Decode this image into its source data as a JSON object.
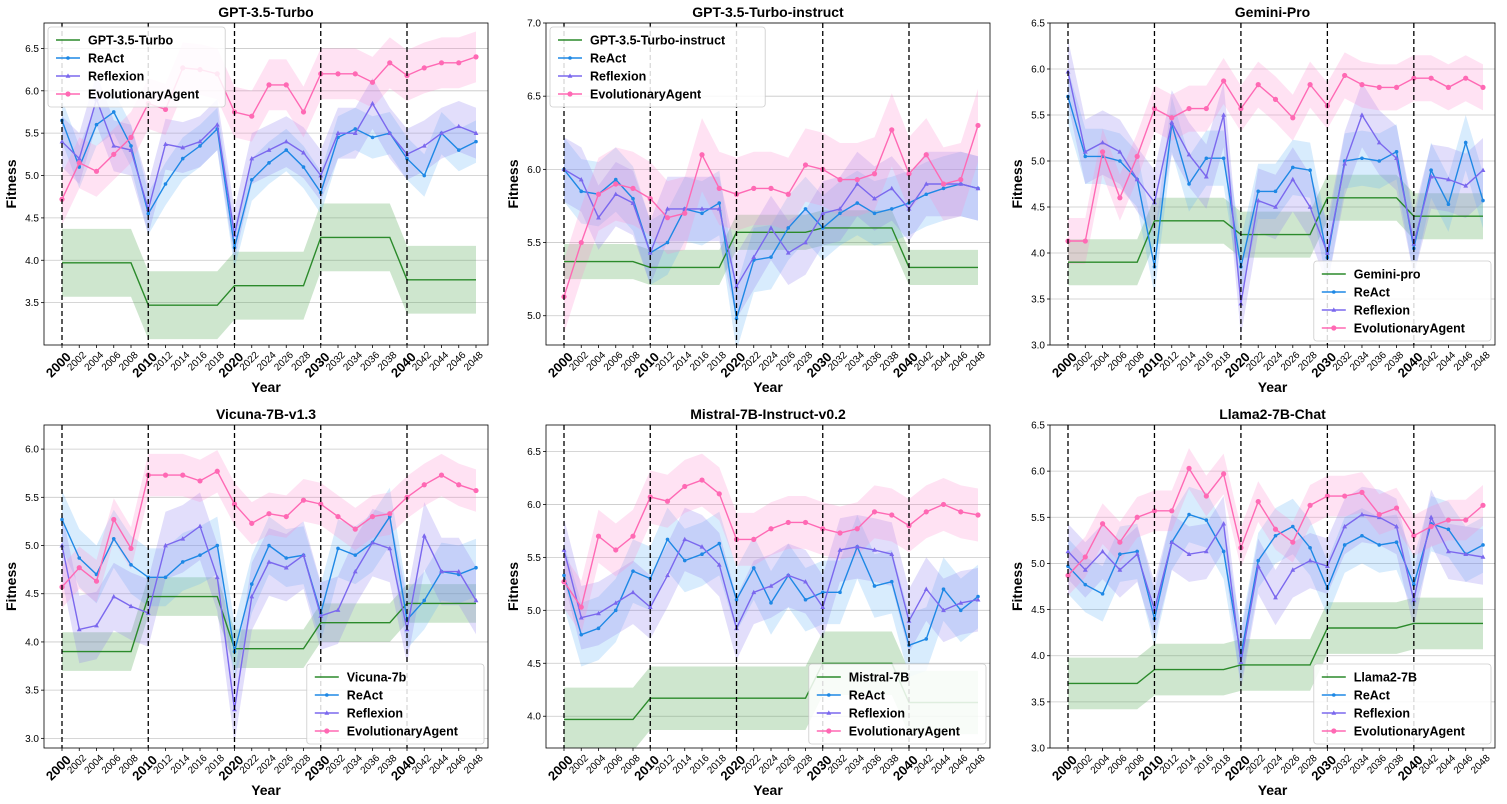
{
  "colors": {
    "baseline": "#2b8a2b",
    "baseline_band": "#3a9a3a",
    "react": "#1e88e5",
    "react_band": "#64b5f6",
    "reflexion": "#7b68ee",
    "reflexion_band": "#8a7cf0",
    "evo": "#ff69b4",
    "evo_band": "#ff8ccf",
    "grid": "#c8c8c8",
    "vline": "#000000"
  },
  "chart_data": [
    {
      "type": "line",
      "title": "GPT-3.5-Turbo",
      "xlabel": "Year",
      "ylabel": "Fitness",
      "ylim": [
        3.0,
        6.8
      ],
      "yticks": [
        "3.5",
        "4.0",
        "4.5",
        "5.0",
        "5.5",
        "6.0",
        "6.5"
      ],
      "x_tick_labels": [
        "2000",
        "2002",
        "2004",
        "2006",
        "2008",
        "2010",
        "2012",
        "2014",
        "2016",
        "2018",
        "2020",
        "2022",
        "2024",
        "2026",
        "2028",
        "2030",
        "2032",
        "2034",
        "2036",
        "2038",
        "2040",
        "2042",
        "2044",
        "2046",
        "2048"
      ],
      "legend_position": "upper-left",
      "series": [
        {
          "name": "GPT-3.5-Turbo",
          "key": "baseline",
          "values": [
            3.97,
            3.97,
            3.97,
            3.97,
            3.97,
            3.47,
            3.47,
            3.47,
            3.47,
            3.47,
            3.7,
            3.7,
            3.7,
            3.7,
            3.7,
            4.27,
            4.27,
            4.27,
            4.27,
            4.27,
            3.77,
            3.77,
            3.77,
            3.77,
            3.77
          ],
          "band": 0.4
        },
        {
          "name": "ReAct",
          "key": "react",
          "values": [
            5.65,
            5.1,
            5.6,
            5.75,
            5.35,
            4.55,
            4.9,
            5.2,
            5.35,
            5.55,
            4.15,
            4.95,
            5.15,
            5.3,
            5.1,
            4.8,
            5.45,
            5.55,
            5.45,
            5.5,
            5.2,
            5.0,
            5.5,
            5.3,
            5.4
          ],
          "band": 0.25
        },
        {
          "name": "Reflexion",
          "key": "reflexion",
          "values": [
            5.4,
            5.2,
            5.9,
            5.35,
            5.3,
            4.6,
            5.37,
            5.33,
            5.4,
            5.6,
            4.3,
            5.2,
            5.3,
            5.4,
            5.27,
            5.0,
            5.5,
            5.5,
            5.85,
            5.5,
            5.25,
            5.35,
            5.5,
            5.58,
            5.5
          ],
          "band": 0.3
        },
        {
          "name": "EvolutionaryAgent",
          "key": "evo",
          "values": [
            4.72,
            5.15,
            5.05,
            5.25,
            5.45,
            5.85,
            5.78,
            6.27,
            6.25,
            6.2,
            5.75,
            5.7,
            6.07,
            6.07,
            5.75,
            6.2,
            6.2,
            6.2,
            6.1,
            6.33,
            6.18,
            6.27,
            6.33,
            6.33,
            6.4
          ],
          "band": 0.3
        }
      ]
    },
    {
      "type": "line",
      "title": "GPT-3.5-Turbo-instruct",
      "xlabel": "Year",
      "ylabel": "Fitness",
      "ylim": [
        4.8,
        7.0
      ],
      "yticks": [
        "5.0",
        "5.5",
        "6.0",
        "6.5",
        "7.0"
      ],
      "x_tick_labels": [
        "2000",
        "2002",
        "2004",
        "2006",
        "2008",
        "2010",
        "2012",
        "2014",
        "2016",
        "2018",
        "2020",
        "2022",
        "2024",
        "2026",
        "2028",
        "2030",
        "2032",
        "2034",
        "2036",
        "2038",
        "2040",
        "2042",
        "2044",
        "2046",
        "2048"
      ],
      "legend_position": "upper-left",
      "series": [
        {
          "name": "GPT-3.5-Turbo-instruct",
          "key": "baseline",
          "values": [
            5.37,
            5.37,
            5.37,
            5.37,
            5.37,
            5.33,
            5.33,
            5.33,
            5.33,
            5.33,
            5.57,
            5.57,
            5.57,
            5.57,
            5.57,
            5.6,
            5.6,
            5.6,
            5.6,
            5.6,
            5.33,
            5.33,
            5.33,
            5.33,
            5.33
          ],
          "band": 0.12
        },
        {
          "name": "ReAct",
          "key": "react",
          "values": [
            6.0,
            5.85,
            5.83,
            5.93,
            5.8,
            5.43,
            5.5,
            5.73,
            5.7,
            5.77,
            4.98,
            5.38,
            5.4,
            5.6,
            5.73,
            5.6,
            5.7,
            5.77,
            5.7,
            5.73,
            5.77,
            5.83,
            5.87,
            5.9,
            5.87
          ],
          "band": 0.22
        },
        {
          "name": "Reflexion",
          "key": "reflexion",
          "values": [
            6.0,
            5.93,
            5.67,
            5.83,
            5.77,
            5.43,
            5.73,
            5.73,
            5.73,
            5.73,
            5.2,
            5.4,
            5.6,
            5.43,
            5.5,
            5.7,
            5.73,
            5.9,
            5.8,
            5.87,
            5.73,
            5.9,
            5.9,
            5.9,
            5.87
          ],
          "band": 0.22
        },
        {
          "name": "EvolutionaryAgent",
          "key": "evo",
          "values": [
            5.13,
            5.5,
            5.83,
            5.9,
            5.87,
            5.8,
            5.67,
            5.7,
            6.1,
            5.87,
            5.83,
            5.87,
            5.87,
            5.83,
            6.03,
            6.0,
            5.93,
            5.93,
            5.97,
            6.27,
            5.97,
            6.1,
            5.9,
            5.93,
            6.3
          ],
          "band": 0.25
        }
      ]
    },
    {
      "type": "line",
      "title": "Gemini-Pro",
      "xlabel": "Year",
      "ylabel": "Fitness",
      "ylim": [
        3.0,
        6.5
      ],
      "yticks": [
        "3.0",
        "3.5",
        "4.0",
        "4.5",
        "5.0",
        "5.5",
        "6.0",
        "6.5"
      ],
      "x_tick_labels": [
        "2000",
        "2002",
        "2004",
        "2006",
        "2008",
        "2010",
        "2012",
        "2014",
        "2016",
        "2018",
        "2020",
        "2022",
        "2024",
        "2026",
        "2028",
        "2030",
        "2032",
        "2034",
        "2036",
        "2038",
        "2040",
        "2042",
        "2044",
        "2046",
        "2048"
      ],
      "legend_position": "lower-right",
      "series": [
        {
          "name": "Gemini-pro",
          "key": "baseline",
          "values": [
            3.9,
            3.9,
            3.9,
            3.9,
            3.9,
            4.35,
            4.35,
            4.35,
            4.35,
            4.35,
            4.2,
            4.2,
            4.2,
            4.2,
            4.2,
            4.6,
            4.6,
            4.6,
            4.6,
            4.6,
            4.4,
            4.4,
            4.4,
            4.4,
            4.4
          ],
          "band": 0.25
        },
        {
          "name": "ReAct",
          "key": "react",
          "values": [
            5.7,
            5.05,
            5.05,
            5.0,
            4.8,
            3.85,
            5.4,
            4.75,
            5.03,
            5.03,
            3.85,
            4.67,
            4.67,
            4.93,
            4.9,
            3.95,
            5.0,
            5.03,
            5.0,
            5.1,
            4.05,
            4.9,
            4.53,
            5.2,
            4.57
          ],
          "band": 0.3
        },
        {
          "name": "Reflexion",
          "key": "reflexion",
          "values": [
            5.97,
            5.1,
            5.2,
            5.1,
            4.8,
            4.55,
            5.42,
            5.07,
            4.83,
            5.5,
            3.45,
            4.57,
            4.5,
            4.8,
            4.5,
            4.0,
            4.97,
            5.5,
            5.2,
            5.03,
            4.1,
            4.83,
            4.8,
            4.73,
            4.9
          ],
          "band": 0.35
        },
        {
          "name": "EvolutionaryAgent",
          "key": "evo",
          "values": [
            4.13,
            4.13,
            5.1,
            4.6,
            5.05,
            5.57,
            5.47,
            5.57,
            5.57,
            5.87,
            5.57,
            5.83,
            5.67,
            5.47,
            5.83,
            5.6,
            5.93,
            5.83,
            5.8,
            5.8,
            5.9,
            5.9,
            5.8,
            5.9,
            5.8
          ],
          "band": 0.25
        }
      ]
    },
    {
      "type": "line",
      "title": "Vicuna-7B-v1.3",
      "xlabel": "Year",
      "ylabel": "Fitness",
      "ylim": [
        2.9,
        6.25
      ],
      "yticks": [
        "3.0",
        "3.5",
        "4.0",
        "4.5",
        "5.0",
        "5.5",
        "6.0"
      ],
      "x_tick_labels": [
        "2000",
        "2002",
        "2004",
        "2006",
        "2008",
        "2010",
        "2012",
        "2014",
        "2016",
        "2018",
        "2020",
        "2022",
        "2024",
        "2026",
        "2028",
        "2030",
        "2032",
        "2034",
        "2036",
        "2038",
        "2040",
        "2042",
        "2044",
        "2046",
        "2048"
      ],
      "legend_position": "lower-right",
      "series": [
        {
          "name": "Vicuna-7b",
          "key": "baseline",
          "values": [
            3.9,
            3.9,
            3.9,
            3.9,
            3.9,
            4.47,
            4.47,
            4.47,
            4.47,
            4.47,
            3.93,
            3.93,
            3.93,
            3.93,
            3.93,
            4.2,
            4.2,
            4.2,
            4.2,
            4.2,
            4.4,
            4.4,
            4.4,
            4.4,
            4.4
          ],
          "band": 0.2
        },
        {
          "name": "ReAct",
          "key": "react",
          "values": [
            5.27,
            4.87,
            4.7,
            5.07,
            4.8,
            4.67,
            4.67,
            4.83,
            4.9,
            5.0,
            3.9,
            4.6,
            5.0,
            4.87,
            4.9,
            4.3,
            4.97,
            4.9,
            5.03,
            5.3,
            4.23,
            4.43,
            4.73,
            4.7,
            4.77
          ],
          "band": 0.3
        },
        {
          "name": "Reflexion",
          "key": "reflexion",
          "values": [
            5.0,
            4.13,
            4.17,
            4.47,
            4.37,
            4.3,
            5.0,
            5.07,
            5.2,
            4.67,
            3.3,
            4.47,
            4.83,
            4.77,
            4.9,
            4.27,
            4.33,
            4.73,
            5.03,
            4.97,
            4.13,
            5.1,
            4.73,
            4.73,
            4.43
          ],
          "band": 0.35
        },
        {
          "name": "EvolutionaryAgent",
          "key": "evo",
          "values": [
            4.57,
            4.77,
            4.63,
            5.27,
            4.97,
            5.73,
            5.73,
            5.73,
            5.67,
            5.77,
            5.43,
            5.23,
            5.33,
            5.3,
            5.47,
            5.43,
            5.3,
            5.17,
            5.3,
            5.33,
            5.5,
            5.63,
            5.73,
            5.63,
            5.57
          ],
          "band": 0.22
        }
      ]
    },
    {
      "type": "line",
      "title": "Mistral-7B-Instruct-v0.2",
      "xlabel": "Year",
      "ylabel": "Fitness",
      "ylim": [
        3.7,
        6.75
      ],
      "yticks": [
        "4.0",
        "4.5",
        "5.0",
        "5.5",
        "6.0",
        "6.5"
      ],
      "x_tick_labels": [
        "2000",
        "2002",
        "2004",
        "2006",
        "2008",
        "2010",
        "2012",
        "2014",
        "2016",
        "2018",
        "2020",
        "2022",
        "2024",
        "2026",
        "2028",
        "2030",
        "2032",
        "2034",
        "2036",
        "2038",
        "2040",
        "2042",
        "2044",
        "2046",
        "2048"
      ],
      "legend_position": "lower-right",
      "series": [
        {
          "name": "Mistral-7B",
          "key": "baseline",
          "values": [
            3.97,
            3.97,
            3.97,
            3.97,
            3.97,
            4.17,
            4.17,
            4.17,
            4.17,
            4.17,
            4.17,
            4.17,
            4.17,
            4.17,
            4.17,
            4.5,
            4.5,
            4.5,
            4.5,
            4.5,
            4.13,
            4.13,
            4.13,
            4.13,
            4.13
          ],
          "band": 0.3
        },
        {
          "name": "ReAct",
          "key": "react",
          "values": [
            5.33,
            4.77,
            4.83,
            5.0,
            5.37,
            5.3,
            5.67,
            5.47,
            5.53,
            5.63,
            5.1,
            5.4,
            5.07,
            5.33,
            5.1,
            5.17,
            5.17,
            5.6,
            5.23,
            5.27,
            4.67,
            4.73,
            5.2,
            5.0,
            5.13
          ],
          "band": 0.3
        },
        {
          "name": "Reflexion",
          "key": "reflexion",
          "values": [
            5.57,
            4.93,
            4.97,
            5.07,
            5.17,
            5.03,
            5.33,
            5.67,
            5.6,
            5.43,
            4.83,
            5.17,
            5.23,
            5.33,
            5.27,
            5.03,
            5.57,
            5.6,
            5.57,
            5.53,
            4.9,
            5.2,
            5.0,
            5.07,
            5.1
          ],
          "band": 0.3
        },
        {
          "name": "EvolutionaryAgent",
          "key": "evo",
          "values": [
            5.27,
            5.03,
            5.7,
            5.57,
            5.7,
            6.07,
            6.03,
            6.17,
            6.23,
            6.1,
            5.67,
            5.67,
            5.77,
            5.83,
            5.83,
            5.77,
            5.73,
            5.77,
            5.93,
            5.9,
            5.8,
            5.93,
            6.0,
            5.93,
            5.9
          ],
          "band": 0.25
        }
      ]
    },
    {
      "type": "line",
      "title": "Llama2-7B-Chat",
      "xlabel": "Year",
      "ylabel": "Fitness",
      "ylim": [
        3.0,
        6.5
      ],
      "yticks": [
        "3.0",
        "3.5",
        "4.0",
        "4.5",
        "5.0",
        "5.5",
        "6.0",
        "6.5"
      ],
      "x_tick_labels": [
        "2000",
        "2002",
        "2004",
        "2006",
        "2008",
        "2010",
        "2012",
        "2014",
        "2016",
        "2018",
        "2020",
        "2022",
        "2024",
        "2026",
        "2028",
        "2030",
        "2032",
        "2034",
        "2036",
        "2038",
        "2040",
        "2042",
        "2044",
        "2046",
        "2048"
      ],
      "legend_position": "lower-right",
      "series": [
        {
          "name": "Llama2-7B",
          "key": "baseline",
          "values": [
            3.7,
            3.7,
            3.7,
            3.7,
            3.7,
            3.85,
            3.85,
            3.85,
            3.85,
            3.85,
            3.9,
            3.9,
            3.9,
            3.9,
            3.9,
            4.3,
            4.3,
            4.3,
            4.3,
            4.3,
            4.35,
            4.35,
            4.35,
            4.35,
            4.35
          ],
          "band": 0.28
        },
        {
          "name": "ReAct",
          "key": "react",
          "values": [
            4.97,
            4.77,
            4.67,
            5.1,
            5.13,
            4.4,
            5.23,
            5.53,
            5.47,
            5.13,
            4.0,
            5.03,
            5.3,
            5.4,
            5.17,
            4.73,
            5.2,
            5.3,
            5.2,
            5.23,
            4.77,
            5.43,
            5.37,
            5.1,
            5.2
          ],
          "band": 0.3
        },
        {
          "name": "Reflexion",
          "key": "reflexion",
          "values": [
            5.13,
            4.93,
            5.13,
            4.93,
            5.1,
            4.5,
            5.23,
            5.1,
            5.13,
            5.43,
            3.93,
            4.97,
            4.63,
            4.93,
            5.03,
            4.97,
            5.4,
            5.53,
            5.5,
            5.4,
            4.6,
            5.5,
            5.13,
            5.1,
            5.07
          ],
          "band": 0.3
        },
        {
          "name": "EvolutionaryAgent",
          "key": "evo",
          "values": [
            4.87,
            5.07,
            5.43,
            5.23,
            5.5,
            5.57,
            5.57,
            6.03,
            5.73,
            5.97,
            5.17,
            5.67,
            5.37,
            5.23,
            5.63,
            5.73,
            5.73,
            5.77,
            5.53,
            5.6,
            5.3,
            5.4,
            5.47,
            5.47,
            5.63
          ],
          "band": 0.22
        }
      ]
    }
  ]
}
